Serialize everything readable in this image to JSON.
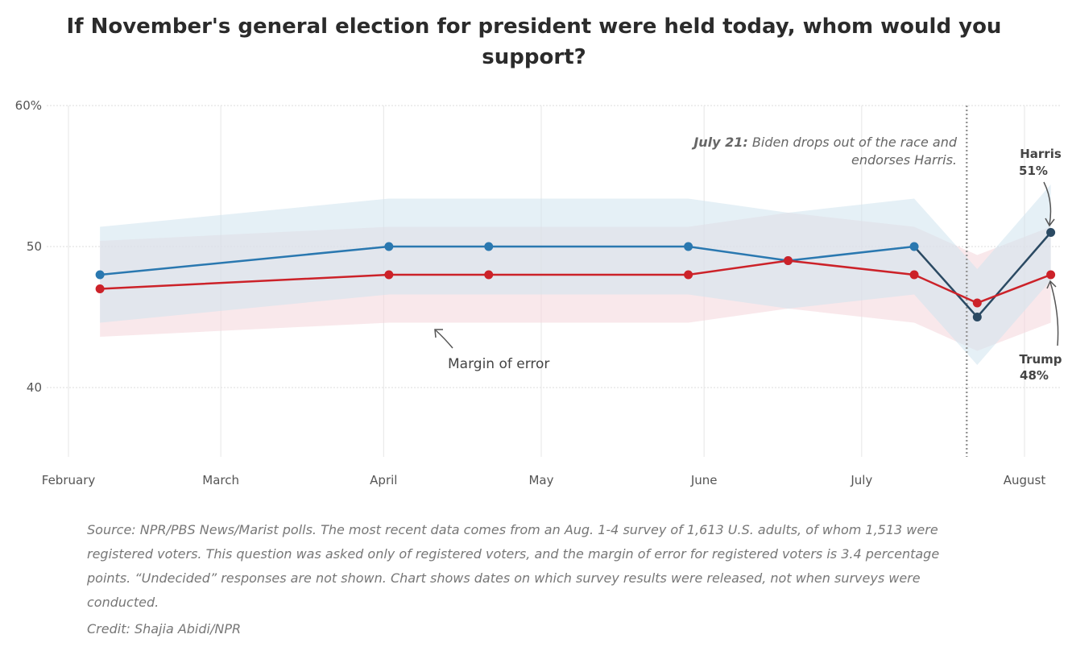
{
  "title": "If November's general election for president were held today, whom would you support?",
  "source_note": "Source: NPR/PBS News/Marist polls. The most recent data comes from an Aug. 1-4 survey of 1,613 U.S. adults, of whom 1,513 were registered voters. This question was asked only of registered voters, and the margin of error for registered voters is 3.4 percentage points. “Undecided” responses are not shown. Chart shows dates on which survey results were released, not when surveys were conducted.",
  "credit": "Credit: Shajia Abidi/NPR",
  "colors": {
    "dem": "#2a78b0",
    "dem_late": "#2b4a63",
    "rep": "#cc2229",
    "dem_band": "#cfe3ef",
    "rep_band": "#f4d6da",
    "grid": "#dddddd",
    "dotted": "#999999"
  },
  "chart_data": {
    "type": "line",
    "x_ticks": [
      {
        "date": "2024-02-01",
        "label": "February"
      },
      {
        "date": "2024-03-01",
        "label": "March"
      },
      {
        "date": "2024-04-01",
        "label": "April"
      },
      {
        "date": "2024-05-01",
        "label": "May"
      },
      {
        "date": "2024-06-01",
        "label": "June"
      },
      {
        "date": "2024-07-01",
        "label": "July"
      },
      {
        "date": "2024-08-01",
        "label": "August"
      }
    ],
    "y_ticks": [
      {
        "value": 40,
        "label": "40"
      },
      {
        "value": 50,
        "label": "50"
      },
      {
        "value": 60,
        "label": "60%"
      }
    ],
    "ylim": [
      35,
      60
    ],
    "xlim": [
      "2024-02-01",
      "2024-08-06"
    ],
    "grid": true,
    "margin_of_error": 3.4,
    "series": [
      {
        "key": "dem",
        "points": [
          {
            "date": "2024-02-07",
            "value": 48
          },
          {
            "date": "2024-04-02",
            "value": 50
          },
          {
            "date": "2024-04-21",
            "value": 50
          },
          {
            "date": "2024-05-29",
            "value": 50
          },
          {
            "date": "2024-06-17",
            "value": 49
          },
          {
            "date": "2024-07-11",
            "value": 50
          },
          {
            "date": "2024-07-23",
            "value": 45
          },
          {
            "date": "2024-08-06",
            "value": 51
          }
        ],
        "switch_index": 5
      },
      {
        "key": "rep",
        "points": [
          {
            "date": "2024-02-07",
            "value": 47
          },
          {
            "date": "2024-04-02",
            "value": 48
          },
          {
            "date": "2024-04-21",
            "value": 48
          },
          {
            "date": "2024-05-29",
            "value": 48
          },
          {
            "date": "2024-06-17",
            "value": 49
          },
          {
            "date": "2024-07-11",
            "value": 48
          },
          {
            "date": "2024-07-23",
            "value": 46
          },
          {
            "date": "2024-08-06",
            "value": 48
          }
        ]
      }
    ],
    "event": {
      "date": "2024-07-21",
      "label_bold": "July 21:",
      "label_line1": " Biden drops out of the race and",
      "label_line2": "endorses Harris."
    },
    "annotations": {
      "margin_label": "Margin of error",
      "harris_name": "Harris",
      "harris_value": "51%",
      "trump_name": "Trump",
      "trump_value": "48%"
    }
  }
}
